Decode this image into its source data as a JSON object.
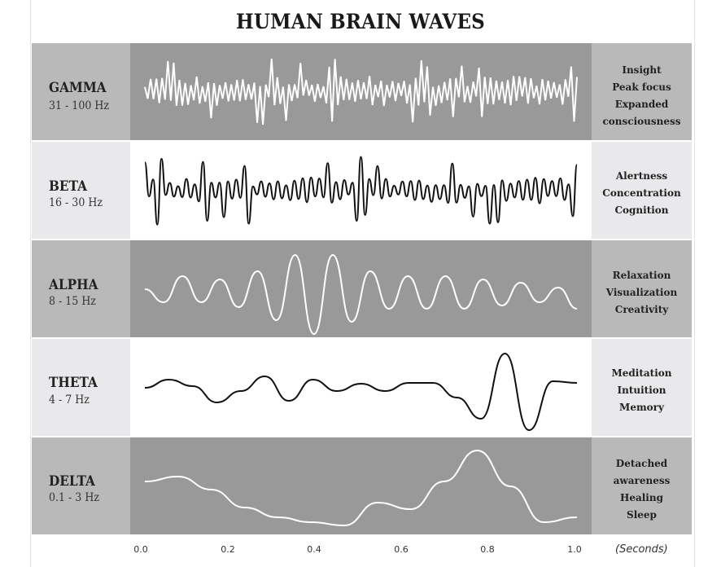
{
  "title": "HUMAN BRAIN WAVES",
  "bands": [
    {
      "name": "GAMMA",
      "range": "31 - 100 Hz",
      "effects": [
        "Insight",
        "Peak focus",
        "Expanded",
        "consciousness"
      ],
      "shade": "dark",
      "wave_color": "#ffffff"
    },
    {
      "name": "BETA",
      "range": "16 - 30 Hz",
      "effects": [
        "Alertness",
        "Concentration",
        "Cognition"
      ],
      "shade": "light",
      "wave_color": "#111111"
    },
    {
      "name": "ALPHA",
      "range": "8 - 15 Hz",
      "effects": [
        "Relaxation",
        "Visualization",
        "Creativity"
      ],
      "shade": "dark",
      "wave_color": "#ffffff"
    },
    {
      "name": "THETA",
      "range": "4 - 7 Hz",
      "effects": [
        "Meditation",
        "Intuition",
        "Memory"
      ],
      "shade": "light",
      "wave_color": "#111111"
    },
    {
      "name": "DELTA",
      "range": "0.1 - 3 Hz",
      "effects": [
        "Detached",
        "awareness",
        "Healing",
        "Sleep"
      ],
      "shade": "dark",
      "wave_color": "#ffffff"
    }
  ],
  "axis": {
    "ticks": [
      "0.0",
      "0.2",
      "0.4",
      "0.6",
      "0.8",
      "1.0"
    ],
    "unit": "(Seconds)"
  }
}
